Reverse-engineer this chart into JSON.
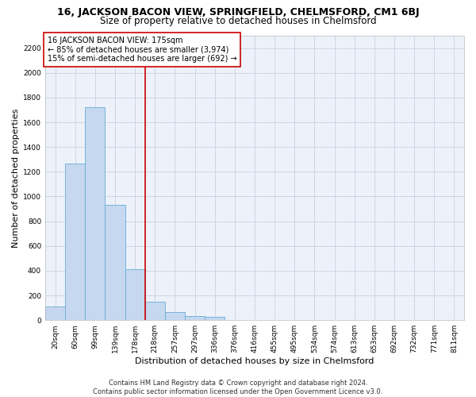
{
  "title": "16, JACKSON BACON VIEW, SPRINGFIELD, CHELMSFORD, CM1 6BJ",
  "subtitle": "Size of property relative to detached houses in Chelmsford",
  "xlabel": "Distribution of detached houses by size in Chelmsford",
  "ylabel": "Number of detached properties",
  "bar_color": "#c5d8f0",
  "bar_edge_color": "#6aaad4",
  "grid_color": "#c8d0e0",
  "background_color": "#edf2fa",
  "categories": [
    "20sqm",
    "60sqm",
    "99sqm",
    "139sqm",
    "178sqm",
    "218sqm",
    "257sqm",
    "297sqm",
    "336sqm",
    "376sqm",
    "416sqm",
    "455sqm",
    "495sqm",
    "534sqm",
    "574sqm",
    "613sqm",
    "653sqm",
    "692sqm",
    "732sqm",
    "771sqm",
    "811sqm"
  ],
  "values": [
    110,
    1265,
    1720,
    935,
    410,
    150,
    65,
    35,
    25,
    0,
    0,
    0,
    0,
    0,
    0,
    0,
    0,
    0,
    0,
    0,
    0
  ],
  "ylim": [
    0,
    2300
  ],
  "yticks": [
    0,
    200,
    400,
    600,
    800,
    1000,
    1200,
    1400,
    1600,
    1800,
    2000,
    2200
  ],
  "vline_color": "#cc0000",
  "annotation_text": "16 JACKSON BACON VIEW: 175sqm\n← 85% of detached houses are smaller (3,974)\n15% of semi-detached houses are larger (692) →",
  "annotation_box_color": "#ffffff",
  "annotation_box_edge": "#cc0000",
  "footnote": "Contains HM Land Registry data © Crown copyright and database right 2024.\nContains public sector information licensed under the Open Government Licence v3.0.",
  "title_fontsize": 9,
  "subtitle_fontsize": 8.5,
  "xlabel_fontsize": 8,
  "ylabel_fontsize": 8,
  "tick_fontsize": 6.5,
  "annotation_fontsize": 7,
  "footnote_fontsize": 6
}
